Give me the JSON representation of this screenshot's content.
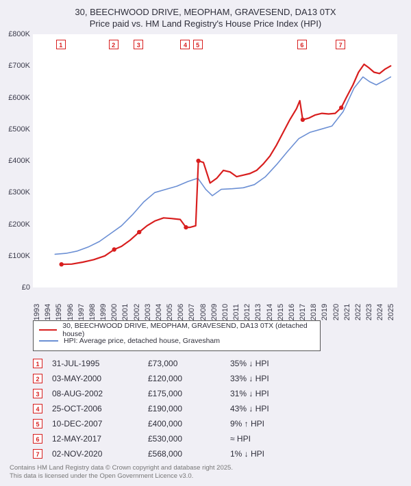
{
  "title_line1": "30, BEECHWOOD DRIVE, MEOPHAM, GRAVESEND, DA13 0TX",
  "title_line2": "Price paid vs. HM Land Registry's House Price Index (HPI)",
  "chart": {
    "type": "line",
    "background_color": "#ffffff",
    "panel_background": "#f0eff5",
    "x_start_year": 1993,
    "x_end_year": 2025.9,
    "ylim": [
      0,
      800000
    ],
    "ytick_step": 100000,
    "ytick_labels": [
      "£0",
      "£100K",
      "£200K",
      "£300K",
      "£400K",
      "£500K",
      "£600K",
      "£700K",
      "£800K"
    ],
    "xtick_years": [
      1993,
      1994,
      1995,
      1996,
      1997,
      1998,
      1999,
      2000,
      2001,
      2002,
      2003,
      2004,
      2005,
      2006,
      2007,
      2008,
      2009,
      2010,
      2011,
      2012,
      2013,
      2014,
      2015,
      2016,
      2017,
      2018,
      2019,
      2020,
      2021,
      2022,
      2023,
      2024,
      2025
    ],
    "series": [
      {
        "name": "price_paid",
        "color": "#d81e1e",
        "width": 2.2,
        "points": [
          [
            1995.58,
            73000
          ],
          [
            1996.5,
            74000
          ],
          [
            1997.5,
            80000
          ],
          [
            1998.5,
            88000
          ],
          [
            1999.5,
            100000
          ],
          [
            2000.34,
            120000
          ],
          [
            2001.0,
            130000
          ],
          [
            2001.8,
            150000
          ],
          [
            2002.6,
            175000
          ],
          [
            2003.3,
            195000
          ],
          [
            2004.0,
            210000
          ],
          [
            2004.8,
            220000
          ],
          [
            2005.5,
            218000
          ],
          [
            2006.3,
            215000
          ],
          [
            2006.82,
            190000
          ],
          [
            2007.2,
            190000
          ],
          [
            2007.7,
            195000
          ],
          [
            2007.94,
            400000
          ],
          [
            2008.4,
            395000
          ],
          [
            2009.0,
            330000
          ],
          [
            2009.6,
            345000
          ],
          [
            2010.2,
            370000
          ],
          [
            2010.8,
            365000
          ],
          [
            2011.4,
            350000
          ],
          [
            2012.0,
            355000
          ],
          [
            2012.6,
            360000
          ],
          [
            2013.2,
            370000
          ],
          [
            2013.8,
            390000
          ],
          [
            2014.4,
            415000
          ],
          [
            2015.0,
            450000
          ],
          [
            2015.6,
            490000
          ],
          [
            2016.2,
            530000
          ],
          [
            2016.8,
            565000
          ],
          [
            2017.1,
            590000
          ],
          [
            2017.36,
            530000
          ],
          [
            2017.9,
            535000
          ],
          [
            2018.5,
            545000
          ],
          [
            2019.1,
            550000
          ],
          [
            2019.7,
            548000
          ],
          [
            2020.3,
            550000
          ],
          [
            2020.84,
            568000
          ],
          [
            2021.3,
            600000
          ],
          [
            2021.9,
            640000
          ],
          [
            2022.4,
            680000
          ],
          [
            2022.9,
            705000
          ],
          [
            2023.3,
            695000
          ],
          [
            2023.8,
            680000
          ],
          [
            2024.3,
            676000
          ],
          [
            2024.8,
            690000
          ],
          [
            2025.3,
            700000
          ]
        ]
      },
      {
        "name": "hpi",
        "color": "#6b8fd4",
        "width": 1.6,
        "points": [
          [
            1995.0,
            105000
          ],
          [
            1996.0,
            108000
          ],
          [
            1997.0,
            115000
          ],
          [
            1998.0,
            128000
          ],
          [
            1999.0,
            145000
          ],
          [
            2000.0,
            170000
          ],
          [
            2001.0,
            195000
          ],
          [
            2002.0,
            230000
          ],
          [
            2003.0,
            270000
          ],
          [
            2004.0,
            300000
          ],
          [
            2005.0,
            310000
          ],
          [
            2006.0,
            320000
          ],
          [
            2007.0,
            335000
          ],
          [
            2007.9,
            345000
          ],
          [
            2008.6,
            310000
          ],
          [
            2009.2,
            290000
          ],
          [
            2010.0,
            310000
          ],
          [
            2011.0,
            312000
          ],
          [
            2012.0,
            315000
          ],
          [
            2013.0,
            325000
          ],
          [
            2014.0,
            350000
          ],
          [
            2015.0,
            388000
          ],
          [
            2016.0,
            430000
          ],
          [
            2017.0,
            470000
          ],
          [
            2018.0,
            490000
          ],
          [
            2019.0,
            500000
          ],
          [
            2020.0,
            510000
          ],
          [
            2021.0,
            555000
          ],
          [
            2022.0,
            630000
          ],
          [
            2022.8,
            665000
          ],
          [
            2023.4,
            650000
          ],
          [
            2024.0,
            640000
          ],
          [
            2024.8,
            655000
          ],
          [
            2025.3,
            665000
          ]
        ]
      }
    ],
    "sale_markers": [
      {
        "n": "1",
        "year": 1995.58
      },
      {
        "n": "2",
        "year": 2000.34
      },
      {
        "n": "3",
        "year": 2002.6
      },
      {
        "n": "4",
        "year": 2006.82
      },
      {
        "n": "5",
        "year": 2007.94
      },
      {
        "n": "6",
        "year": 2017.36
      },
      {
        "n": "7",
        "year": 2020.84
      }
    ]
  },
  "legend": {
    "items": [
      {
        "color": "#d81e1e",
        "width": 2.5,
        "label": "30, BEECHWOOD DRIVE, MEOPHAM, GRAVESEND, DA13 0TX (detached house)"
      },
      {
        "color": "#6b8fd4",
        "width": 2,
        "label": "HPI: Average price, detached house, Gravesham"
      }
    ]
  },
  "sales_table": [
    {
      "n": "1",
      "date": "31-JUL-1995",
      "price": "£73,000",
      "hpi": "35% ↓ HPI"
    },
    {
      "n": "2",
      "date": "03-MAY-2000",
      "price": "£120,000",
      "hpi": "33% ↓ HPI"
    },
    {
      "n": "3",
      "date": "08-AUG-2002",
      "price": "£175,000",
      "hpi": "31% ↓ HPI"
    },
    {
      "n": "4",
      "date": "25-OCT-2006",
      "price": "£190,000",
      "hpi": "43% ↓ HPI"
    },
    {
      "n": "5",
      "date": "10-DEC-2007",
      "price": "£400,000",
      "hpi": "9% ↑ HPI"
    },
    {
      "n": "6",
      "date": "12-MAY-2017",
      "price": "£530,000",
      "hpi": "≈ HPI"
    },
    {
      "n": "7",
      "date": "02-NOV-2020",
      "price": "£568,000",
      "hpi": "1% ↓ HPI"
    }
  ],
  "footer_line1": "Contains HM Land Registry data © Crown copyright and database right 2025.",
  "footer_line2": "This data is licensed under the Open Government Licence v3.0."
}
